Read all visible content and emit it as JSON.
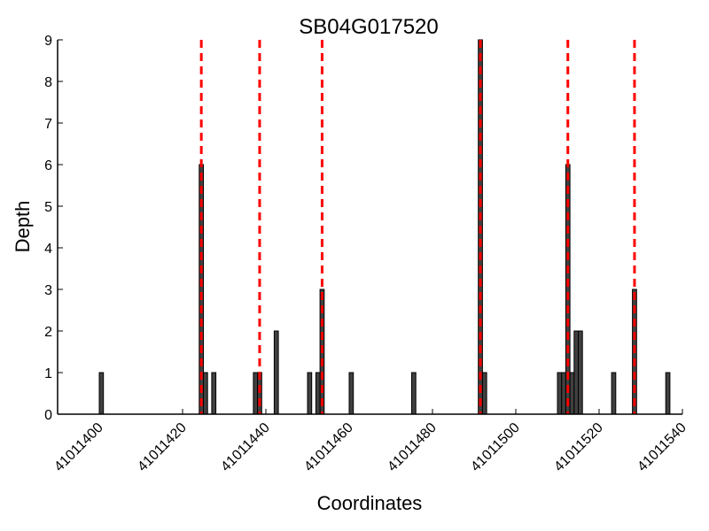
{
  "chart_data": {
    "type": "bar",
    "title": "SB04G017520",
    "xlabel": "Coordinates",
    "ylabel": "Depth",
    "xlim": [
      41011390,
      41011540
    ],
    "ylim": [
      0,
      9
    ],
    "xticks": [
      41011400,
      41011420,
      41011440,
      41011460,
      41011480,
      41011500,
      41011520,
      41011540
    ],
    "yticks": [
      0,
      1,
      2,
      3,
      4,
      5,
      6,
      7,
      8,
      9
    ],
    "grid": false,
    "bar_color": "#404040",
    "bar_edge_color": "#000000",
    "marker_color": "#ff0000",
    "bars": [
      {
        "x": 41011400,
        "depth": 1
      },
      {
        "x": 41011424,
        "depth": 6
      },
      {
        "x": 41011425,
        "depth": 1
      },
      {
        "x": 41011427,
        "depth": 1
      },
      {
        "x": 41011437,
        "depth": 1
      },
      {
        "x": 41011438,
        "depth": 1
      },
      {
        "x": 41011442,
        "depth": 2
      },
      {
        "x": 41011450,
        "depth": 1
      },
      {
        "x": 41011452,
        "depth": 1
      },
      {
        "x": 41011453,
        "depth": 3
      },
      {
        "x": 41011460,
        "depth": 1
      },
      {
        "x": 41011475,
        "depth": 1
      },
      {
        "x": 41011491,
        "depth": 9
      },
      {
        "x": 41011492,
        "depth": 1
      },
      {
        "x": 41011510,
        "depth": 1
      },
      {
        "x": 41011511,
        "depth": 1
      },
      {
        "x": 41011512,
        "depth": 6
      },
      {
        "x": 41011513,
        "depth": 1
      },
      {
        "x": 41011514,
        "depth": 2
      },
      {
        "x": 41011515,
        "depth": 2
      },
      {
        "x": 41011523,
        "depth": 1
      },
      {
        "x": 41011528,
        "depth": 3
      },
      {
        "x": 41011536,
        "depth": 1
      }
    ],
    "markers": [
      41011424.5,
      41011438.5,
      41011453.5,
      41011491.5,
      41011512.5,
      41011528.5
    ]
  }
}
